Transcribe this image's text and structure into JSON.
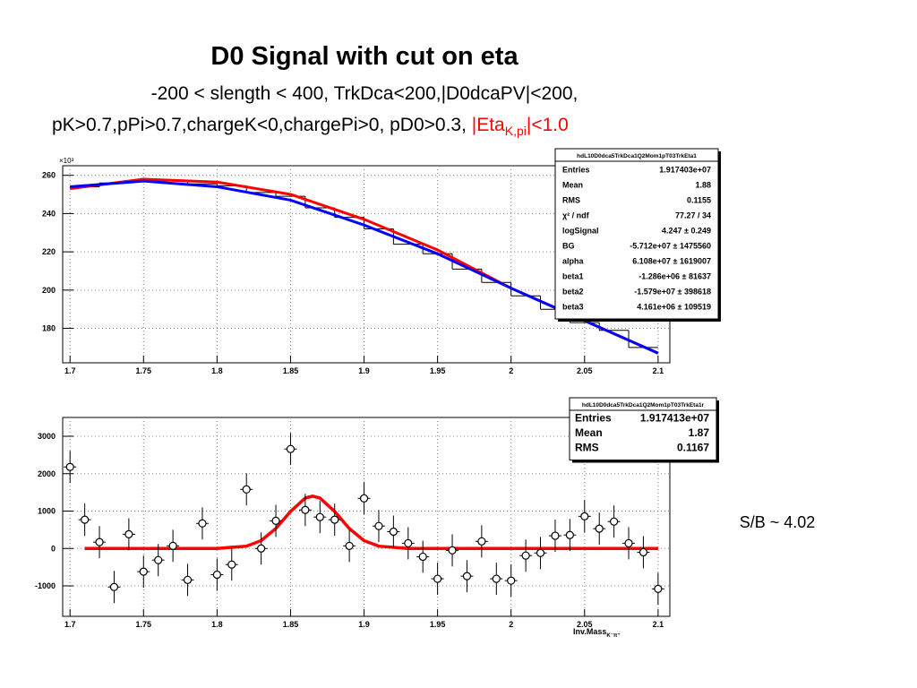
{
  "title": "D0 Signal with cut on eta",
  "subtitle_line1": "-200 < slength < 400, TrkDca<200,|D0dcaPV|<200,",
  "subtitle_line2": {
    "text": "pK>0.7,pPi>0.7,chargeK<0,chargePi>0, pD0>0.3, ",
    "highlight": "|Eta",
    "highlight_sub": "K,pi",
    "highlight_end": "|<1.0"
  },
  "note": "S/B ~ 4.02",
  "chart_data": [
    {
      "type": "histogram",
      "bins": [
        1.7,
        1.72,
        1.74,
        1.76,
        1.78,
        1.8,
        1.82,
        1.84,
        1.86,
        1.88,
        1.9,
        1.92,
        1.94,
        1.96,
        1.98,
        2.0,
        2.02,
        2.04,
        2.06,
        2.08,
        2.1
      ],
      "counts": [
        254,
        256,
        257.5,
        257.5,
        255.5,
        254.5,
        251,
        249,
        243,
        238,
        232,
        224,
        219,
        211,
        204,
        197,
        190,
        183,
        179,
        170
      ],
      "color": "#000000",
      "curves": [
        {
          "color": "#ff0000",
          "x": [
            1.7,
            1.75,
            1.8,
            1.85,
            1.9,
            1.95,
            2.0,
            2.05,
            2.1
          ],
          "values": [
            253,
            258,
            256.5,
            250,
            237,
            221,
            201,
            184,
            167
          ]
        },
        {
          "color": "#0000ff",
          "x": [
            1.7,
            1.75,
            1.8,
            1.85,
            1.9,
            1.95,
            2.0,
            2.05,
            2.1
          ],
          "values": [
            254,
            257,
            254,
            247,
            234,
            219,
            201,
            184,
            167
          ]
        }
      ],
      "xlim": [
        1.695,
        2.108
      ],
      "xticks": [
        1.7,
        1.75,
        1.8,
        1.85,
        1.9,
        1.95,
        2,
        2.05,
        2.1
      ],
      "ylim": [
        162,
        265
      ],
      "yticks": [
        180,
        200,
        220,
        240,
        260
      ],
      "y_multiplier": "×10³",
      "grid": true,
      "stats": {
        "title": "hdL10D0dca5TrkDca1Q2Mom1pT03TrkEta1",
        "rows": [
          [
            "Entries",
            "1.917403e+07"
          ],
          [
            "Mean",
            "1.88"
          ],
          [
            "RMS",
            "0.1155"
          ],
          [
            "χ² / ndf",
            "77.27 / 34"
          ],
          [
            "logSignal",
            "4.247 ± 0.249"
          ],
          [
            "BG",
            "-5.712e+07 ± 1475560"
          ],
          [
            "alpha",
            "6.108e+07 ± 1619007"
          ],
          [
            "beta1",
            "-1.286e+06 ± 81637"
          ],
          [
            "beta2",
            "-1.579e+07 ± 398618"
          ],
          [
            "beta3",
            "4.161e+06 ± 109519"
          ]
        ]
      }
    },
    {
      "type": "errorbar",
      "x": [
        1.7,
        1.71,
        1.72,
        1.73,
        1.74,
        1.75,
        1.76,
        1.77,
        1.78,
        1.79,
        1.8,
        1.81,
        1.82,
        1.83,
        1.84,
        1.85,
        1.86,
        1.87,
        1.88,
        1.89,
        1.9,
        1.91,
        1.92,
        1.93,
        1.94,
        1.95,
        1.96,
        1.97,
        1.98,
        1.99,
        2.0,
        2.01,
        2.02,
        2.03,
        2.04,
        2.05,
        2.06,
        2.07,
        2.08,
        2.09,
        2.1
      ],
      "values": [
        2180,
        770,
        170,
        -1030,
        380,
        -620,
        -310,
        70,
        -840,
        670,
        -700,
        -430,
        1580,
        0,
        740,
        2660,
        1030,
        840,
        770,
        70,
        1340,
        600,
        450,
        140,
        -220,
        -810,
        -50,
        -740,
        190,
        -810,
        -860,
        -190,
        -120,
        340,
        360,
        860,
        530,
        720,
        140,
        -100,
        -1080
      ],
      "errors": [
        430,
        430,
        430,
        430,
        430,
        430,
        430,
        430,
        430,
        430,
        430,
        430,
        430,
        430,
        430,
        430,
        430,
        430,
        430,
        430,
        430,
        430,
        430,
        430,
        430,
        430,
        430,
        430,
        430,
        430,
        430,
        430,
        430,
        430,
        430,
        430,
        430,
        430,
        430,
        430,
        430
      ],
      "color": "#000000",
      "curves": [
        {
          "color": "#ff0000",
          "x": [
            1.71,
            1.8,
            1.82,
            1.83,
            1.84,
            1.85,
            1.86,
            1.865,
            1.87,
            1.88,
            1.89,
            1.9,
            1.91,
            1.93,
            2.1
          ],
          "values": [
            0,
            2,
            62,
            211,
            533,
            990,
            1347,
            1400,
            1347,
            990,
            533,
            211,
            62,
            2,
            0
          ]
        }
      ],
      "xlim": [
        1.695,
        2.108
      ],
      "xticks": [
        1.7,
        1.75,
        1.8,
        1.85,
        1.9,
        1.95,
        2,
        2.05,
        2.1
      ],
      "ylim": [
        -1814,
        3503
      ],
      "yticks": [
        -1000,
        0,
        1000,
        2000,
        3000
      ],
      "x_label": "Inv.Mass",
      "x_label_sub": "K⁻π⁺",
      "grid": true,
      "stats": {
        "title": "hdL10D0dca5TrkDca1Q2Mom1pT03TrkEta1r",
        "rows": [
          [
            "Entries",
            "1.917413e+07"
          ],
          [
            "Mean",
            "1.87"
          ],
          [
            "RMS",
            "0.1167"
          ]
        ]
      }
    }
  ]
}
